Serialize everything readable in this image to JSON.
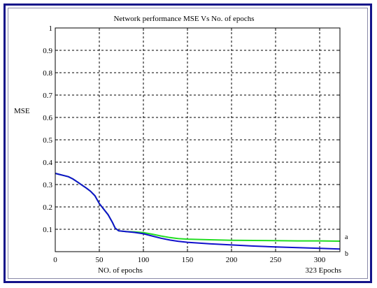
{
  "chart_data": {
    "type": "line",
    "title": "Network performance   MSE Vs No. of epochs",
    "xlabel": "NO. of epochs",
    "ylabel": "MSE",
    "epoch_note": "323 Epochs",
    "xlim": [
      0,
      323
    ],
    "ylim": [
      0,
      1
    ],
    "grid": true,
    "x_ticks": [
      "0",
      "50",
      "100",
      "150",
      "200",
      "250",
      "300"
    ],
    "y_ticks": [
      "0.1",
      "0.2",
      "0.3",
      "0.4",
      "0.5",
      "0.6",
      "0.7",
      "0.8",
      "0.9",
      "1"
    ],
    "series": [
      {
        "name": "a",
        "color": "#22dd22",
        "x": [
          0,
          5,
          10,
          15,
          20,
          25,
          30,
          35,
          40,
          45,
          50,
          55,
          60,
          65,
          68,
          72,
          80,
          90,
          100,
          110,
          120,
          130,
          140,
          150,
          175,
          200,
          225,
          250,
          275,
          300,
          323
        ],
        "y": [
          0.35,
          0.345,
          0.34,
          0.335,
          0.325,
          0.312,
          0.298,
          0.285,
          0.27,
          0.25,
          0.215,
          0.19,
          0.165,
          0.13,
          0.105,
          0.093,
          0.09,
          0.088,
          0.085,
          0.078,
          0.07,
          0.063,
          0.058,
          0.056,
          0.053,
          0.051,
          0.05,
          0.049,
          0.048,
          0.048,
          0.047
        ]
      },
      {
        "name": "b",
        "color": "#1010cc",
        "x": [
          0,
          5,
          10,
          15,
          20,
          25,
          30,
          35,
          40,
          45,
          50,
          55,
          60,
          65,
          68,
          72,
          80,
          90,
          100,
          110,
          120,
          130,
          140,
          150,
          175,
          200,
          225,
          250,
          275,
          300,
          323
        ],
        "y": [
          0.35,
          0.345,
          0.34,
          0.335,
          0.325,
          0.312,
          0.298,
          0.285,
          0.27,
          0.25,
          0.215,
          0.19,
          0.165,
          0.13,
          0.105,
          0.093,
          0.09,
          0.086,
          0.08,
          0.07,
          0.06,
          0.052,
          0.046,
          0.042,
          0.035,
          0.03,
          0.025,
          0.021,
          0.018,
          0.015,
          0.012
        ]
      }
    ]
  }
}
